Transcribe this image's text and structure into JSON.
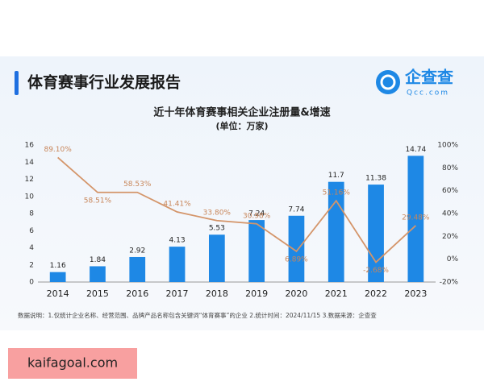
{
  "header": {
    "title": "体育赛事行业发展报告",
    "logo_text": "企查查",
    "logo_subtext": "Qcc.com"
  },
  "chart_data": {
    "type": "bar",
    "title": "近十年体育赛事相关企业注册量&增速",
    "subtitle": "(单位：万家)",
    "categories": [
      "2014",
      "2015",
      "2016",
      "2017",
      "2018",
      "2019",
      "2020",
      "2021",
      "2022",
      "2023"
    ],
    "series": [
      {
        "type": "bar",
        "color": "#1e88e5",
        "axis": "y",
        "values": [
          1.16,
          1.84,
          2.92,
          4.13,
          5.53,
          7.24,
          7.74,
          11.7,
          11.38,
          14.74
        ]
      },
      {
        "type": "line",
        "color": "#d4956a",
        "axis": "y2",
        "values": [
          89.1,
          58.51,
          58.53,
          41.41,
          33.8,
          30.98,
          6.89,
          51.16,
          -2.68,
          29.48
        ],
        "value_labels": [
          "89.10%",
          "58.51%",
          "58.53%",
          "41.41%",
          "33.80%",
          "30.98%",
          "6.89%",
          "51.16%",
          "-2.68%",
          "29.48%"
        ]
      }
    ],
    "ylim": [
      0,
      16
    ],
    "yticks": [
      0,
      2,
      4,
      6,
      8,
      10,
      12,
      14,
      16
    ],
    "y2lim": [
      -20,
      100
    ],
    "y2ticks": [
      {
        "value": -20,
        "label": "-20%"
      },
      {
        "value": 0,
        "label": "0%"
      },
      {
        "value": 20,
        "label": "20%"
      },
      {
        "value": 40,
        "label": "40%"
      },
      {
        "value": 60,
        "label": "60%"
      },
      {
        "value": 80,
        "label": "80%"
      },
      {
        "value": 100,
        "label": "100%"
      }
    ],
    "grid": false
  },
  "footnote": "数据说明：1.仅统计企业名称、经营范围、品牌产品名称包含关键词“体育赛事”的企业  2.统计时间：2024/11/15  3.数据来源：企查查",
  "watermark": "kaifagoal.com"
}
